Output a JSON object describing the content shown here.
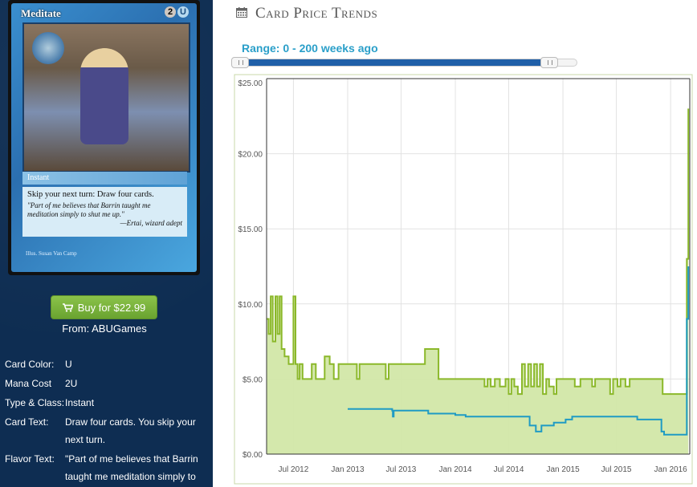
{
  "card": {
    "name": "Meditate",
    "mana": [
      "2",
      "U"
    ],
    "type_line": "Instant",
    "rules_text": "Skip your next turn: Draw four cards.",
    "flavor_text": "\"Part of me believes that Barrin taught me meditation simply to shut me up.\"",
    "flavor_attribution": "—Ertai, wizard adept",
    "illustrator": "Illus. Susan Van Camp"
  },
  "buy": {
    "label": "Buy for $22.99",
    "from": "From: ABUGames"
  },
  "attributes": [
    {
      "key": "Card Color:",
      "value": "U"
    },
    {
      "key": "Mana Cost",
      "value": "2U"
    },
    {
      "key": "Type & Class:",
      "value": "Instant"
    },
    {
      "key": "Card Text:",
      "value": "Draw four cards. You skip your next turn."
    },
    {
      "key": "Flavor Text:",
      "value": "\"Part of me believes that Barrin taught me meditation simply to"
    }
  ],
  "page": {
    "title": "Card Price Trends",
    "range_label": "Range: 0 - 200 weeks ago"
  },
  "colors": {
    "green": "#8bb82a",
    "green_fill": "#d2e7a8",
    "blue": "#1f9bc4",
    "sidebar": "#0e2d52",
    "accent": "#2a9fc9"
  },
  "slider": {
    "min_weeks": 0,
    "max_weeks": 200,
    "total_weeks": 210
  },
  "chart_data": {
    "type": "line",
    "title": "",
    "xlabel": "",
    "ylabel": "",
    "ylim": [
      0,
      25
    ],
    "yticks": [
      "$0.00",
      "$5.00",
      "$10.00",
      "$15.00",
      "$20.00",
      "$25.00"
    ],
    "ytick_values": [
      0,
      5,
      10,
      15,
      20,
      25
    ],
    "xlim": [
      "2012-04-01",
      "2016-03-06"
    ],
    "xticks": [
      {
        "date": "2012-07-01",
        "label": "Jul 2012"
      },
      {
        "date": "2013-01-01",
        "label": "Jan 2013"
      },
      {
        "date": "2013-07-01",
        "label": "Jul 2013"
      },
      {
        "date": "2014-01-01",
        "label": "Jan 2014"
      },
      {
        "date": "2014-07-01",
        "label": "Jul 2014"
      },
      {
        "date": "2015-01-01",
        "label": "Jan 2015"
      },
      {
        "date": "2015-07-01",
        "label": "Jul 2015"
      },
      {
        "date": "2016-01-01",
        "label": "Jan 2016"
      }
    ],
    "grid": true,
    "series": [
      {
        "name": "",
        "color": "#8bb82a",
        "fill": true,
        "points": [
          [
            "2012-04-01",
            9.0
          ],
          [
            "2012-04-08",
            8.0
          ],
          [
            "2012-04-15",
            10.5
          ],
          [
            "2012-04-22",
            7.5
          ],
          [
            "2012-05-01",
            10.5
          ],
          [
            "2012-05-08",
            8.0
          ],
          [
            "2012-05-15",
            10.5
          ],
          [
            "2012-05-22",
            7.0
          ],
          [
            "2012-06-01",
            6.5
          ],
          [
            "2012-06-15",
            6.0
          ],
          [
            "2012-06-25",
            6.0
          ],
          [
            "2012-07-01",
            10.5
          ],
          [
            "2012-07-08",
            6.0
          ],
          [
            "2012-07-15",
            5.0
          ],
          [
            "2012-07-22",
            6.0
          ],
          [
            "2012-08-01",
            5.0
          ],
          [
            "2012-08-15",
            5.0
          ],
          [
            "2012-09-01",
            6.0
          ],
          [
            "2012-09-15",
            5.0
          ],
          [
            "2012-10-01",
            5.0
          ],
          [
            "2012-10-15",
            6.5
          ],
          [
            "2012-11-01",
            6.0
          ],
          [
            "2012-11-15",
            5.0
          ],
          [
            "2012-12-01",
            6.0
          ],
          [
            "2013-01-15",
            6.0
          ],
          [
            "2013-02-01",
            5.0
          ],
          [
            "2013-02-10",
            6.0
          ],
          [
            "2013-05-01",
            6.0
          ],
          [
            "2013-05-10",
            5.0
          ],
          [
            "2013-05-20",
            6.0
          ],
          [
            "2013-09-15",
            6.0
          ],
          [
            "2013-09-20",
            7.0
          ],
          [
            "2013-11-01",
            7.0
          ],
          [
            "2013-11-05",
            5.0
          ],
          [
            "2014-04-01",
            5.0
          ],
          [
            "2014-04-10",
            4.5
          ],
          [
            "2014-04-20",
            5.0
          ],
          [
            "2014-05-01",
            4.5
          ],
          [
            "2014-05-15",
            5.0
          ],
          [
            "2014-06-01",
            4.5
          ],
          [
            "2014-06-20",
            5.0
          ],
          [
            "2014-07-01",
            4.0
          ],
          [
            "2014-07-10",
            5.0
          ],
          [
            "2014-07-20",
            4.5
          ],
          [
            "2014-08-01",
            4.0
          ],
          [
            "2014-08-15",
            6.0
          ],
          [
            "2014-08-25",
            4.5
          ],
          [
            "2014-09-05",
            6.0
          ],
          [
            "2014-09-15",
            4.5
          ],
          [
            "2014-09-25",
            6.0
          ],
          [
            "2014-10-05",
            4.5
          ],
          [
            "2014-10-15",
            6.0
          ],
          [
            "2014-10-25",
            4.0
          ],
          [
            "2014-11-05",
            5.0
          ],
          [
            "2014-11-15",
            4.5
          ],
          [
            "2014-12-01",
            4.0
          ],
          [
            "2014-12-10",
            5.0
          ],
          [
            "2015-02-01",
            5.0
          ],
          [
            "2015-02-10",
            4.5
          ],
          [
            "2015-03-01",
            5.0
          ],
          [
            "2015-04-01",
            5.0
          ],
          [
            "2015-04-10",
            4.5
          ],
          [
            "2015-04-20",
            5.0
          ],
          [
            "2015-06-01",
            5.0
          ],
          [
            "2015-06-10",
            4.0
          ],
          [
            "2015-06-20",
            5.0
          ],
          [
            "2015-07-05",
            4.5
          ],
          [
            "2015-07-15",
            5.0
          ],
          [
            "2015-08-01",
            4.5
          ],
          [
            "2015-08-15",
            5.0
          ],
          [
            "2015-12-01",
            5.0
          ],
          [
            "2015-12-05",
            4.0
          ],
          [
            "2016-02-20",
            4.0
          ],
          [
            "2016-02-25",
            13.0
          ],
          [
            "2016-03-01",
            23.0
          ]
        ]
      },
      {
        "name": "",
        "color": "#1f9bc4",
        "fill": false,
        "points": [
          [
            "2013-01-01",
            3.0
          ],
          [
            "2013-06-01",
            2.9
          ],
          [
            "2013-06-03",
            2.5
          ],
          [
            "2013-06-06",
            2.9
          ],
          [
            "2013-10-01",
            2.7
          ],
          [
            "2014-01-01",
            2.6
          ],
          [
            "2014-02-01",
            2.6
          ],
          [
            "2014-02-05",
            2.5
          ],
          [
            "2014-09-01",
            2.5
          ],
          [
            "2014-09-10",
            1.9
          ],
          [
            "2014-10-01",
            1.5
          ],
          [
            "2014-10-20",
            1.9
          ],
          [
            "2014-12-01",
            2.1
          ],
          [
            "2015-01-10",
            2.3
          ],
          [
            "2015-02-01",
            2.5
          ],
          [
            "2015-09-01",
            2.5
          ],
          [
            "2015-09-10",
            2.3
          ],
          [
            "2015-12-01",
            1.5
          ],
          [
            "2015-12-10",
            1.3
          ],
          [
            "2016-02-20",
            1.3
          ],
          [
            "2016-02-25",
            9.0
          ],
          [
            "2016-03-01",
            12.5
          ]
        ]
      }
    ]
  }
}
